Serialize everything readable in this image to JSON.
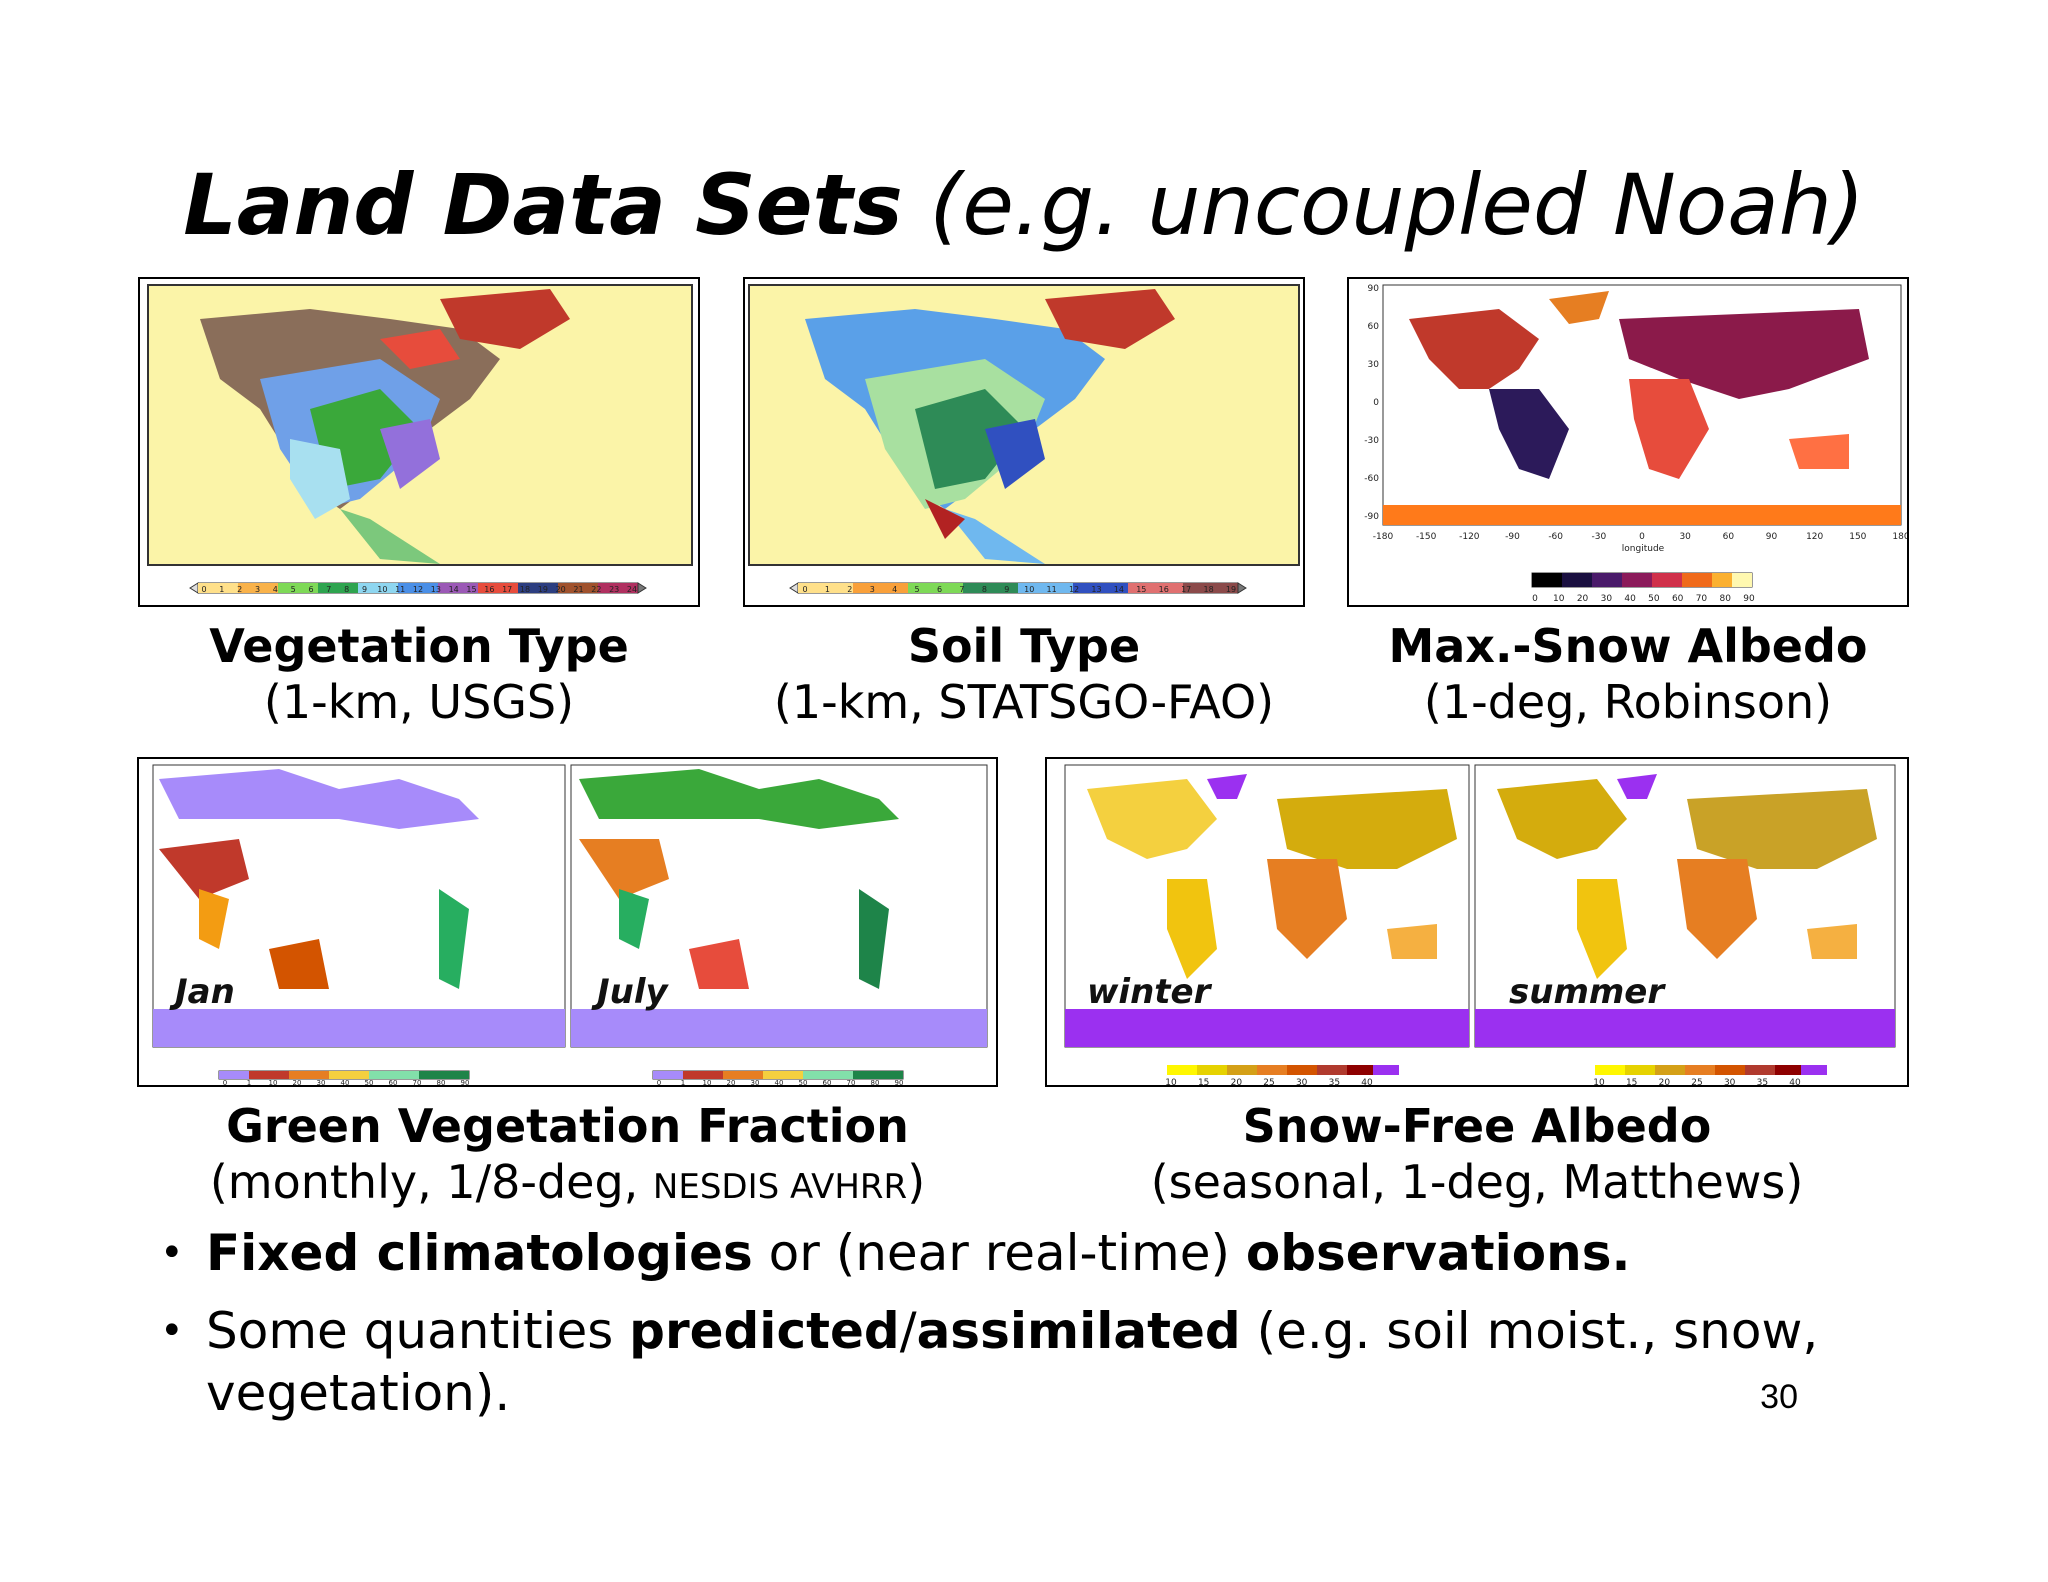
{
  "title": {
    "bold": "Land Data Sets",
    "rest": "(e.g. uncoupled Noah)"
  },
  "panels": {
    "vegetation": {
      "heading": "Vegetation Type",
      "sub": "(1-km, USGS)",
      "colorbar_labels": [
        "0",
        "1",
        "2",
        "3",
        "4",
        "5",
        "6",
        "7",
        "8",
        "9",
        "10",
        "11",
        "12",
        "13",
        "14",
        "15",
        "16",
        "17",
        "18",
        "19",
        "20",
        "21",
        "22",
        "23",
        "24"
      ]
    },
    "soil": {
      "heading": "Soil Type",
      "sub": "(1-km, STATSGO-FAO)",
      "colorbar_labels": [
        "0",
        "1",
        "2",
        "3",
        "4",
        "5",
        "6",
        "7",
        "8",
        "9",
        "10",
        "11",
        "12",
        "13",
        "14",
        "15",
        "16",
        "17",
        "18",
        "19"
      ]
    },
    "snow_albedo": {
      "heading": "Max.-Snow Albedo",
      "sub": "(1-deg, Robinson)",
      "y_ticks": [
        "90",
        "60",
        "30",
        "0",
        "-30",
        "-60",
        "-90"
      ],
      "x_ticks": [
        "-180",
        "-150",
        "-120",
        "-90",
        "-60",
        "-30",
        "0",
        "30",
        "60",
        "90",
        "120",
        "150",
        "180"
      ],
      "xlabel": "longitude",
      "colorbar_labels": [
        "0",
        "10",
        "20",
        "30",
        "40",
        "50",
        "60",
        "70",
        "80",
        "90"
      ]
    },
    "gvf": {
      "heading": "Green Vegetation Fraction",
      "sub_prefix": "(monthly, 1/8-deg, ",
      "sub_small": "NESDIS AVHRR",
      "sub_suffix": ")",
      "jan_label": "Jan",
      "july_label": "July",
      "colorbar_labels": [
        "0",
        "1",
        "10",
        "20",
        "30",
        "40",
        "50",
        "60",
        "70",
        "80",
        "90"
      ]
    },
    "snowfree_albedo": {
      "heading": "Snow-Free Albedo",
      "sub": "(seasonal, 1-deg, Matthews)",
      "winter_label": "winter",
      "summer_label": "summer",
      "colorbar_labels": [
        "10",
        "15",
        "20",
        "25",
        "30",
        "35",
        "40"
      ]
    }
  },
  "bullets": {
    "b1": {
      "bold1": "Fixed climatologies",
      "mid": " or (near real-time) ",
      "bold2": "observations."
    },
    "b2": {
      "pre": "Some quantities ",
      "bold1": "predicted",
      "slash": "/",
      "bold2": "assimilated",
      "post": " (e.g. soil moist., snow, vegetation)."
    }
  },
  "page_number": "30"
}
